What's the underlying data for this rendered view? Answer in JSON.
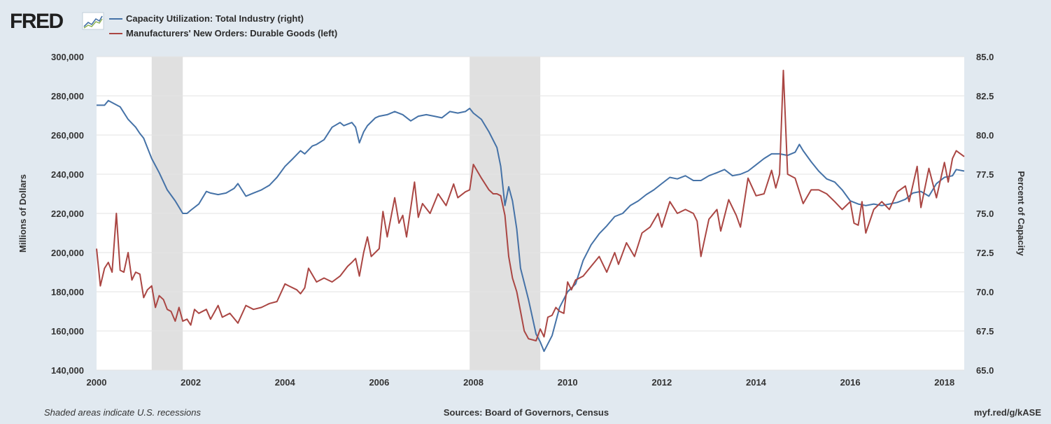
{
  "brand": {
    "logo_text": "FRED",
    "logo_icon": "fred-chart-icon"
  },
  "footer": {
    "recession_note": "Shaded areas indicate U.S. recessions",
    "sources": "Sources: Board of Governors, Census",
    "short_url": "myf.red/g/kASE"
  },
  "colors": {
    "background": "#e1e9f0",
    "plot_bg": "#ffffff",
    "grid": "#e3e3e3",
    "recession": "#e0e0e0",
    "capacity": "#4572a7",
    "orders": "#aa4643"
  },
  "chart_data": {
    "type": "line",
    "legend_position": "top-left",
    "grid": true,
    "recessions": [
      [
        2001.17,
        2001.83
      ],
      [
        2007.92,
        2009.42
      ]
    ],
    "x_axis": {
      "range": [
        2000.0,
        2018.42
      ],
      "ticks": [
        2000,
        2002,
        2004,
        2006,
        2008,
        2010,
        2012,
        2014,
        2016,
        2018
      ],
      "tick_labels": [
        "2000",
        "2002",
        "2004",
        "2006",
        "2008",
        "2010",
        "2012",
        "2014",
        "2016",
        "2018"
      ]
    },
    "y_left": {
      "label": "Millions of Dollars",
      "range": [
        140000,
        300000
      ],
      "ticks": [
        140000,
        160000,
        180000,
        200000,
        220000,
        240000,
        260000,
        280000,
        300000
      ],
      "tick_labels": [
        "140,000",
        "160,000",
        "180,000",
        "200,000",
        "220,000",
        "240,000",
        "260,000",
        "280,000",
        "300,000"
      ]
    },
    "y_right": {
      "label": "Percent of Capacity",
      "range": [
        65.0,
        85.0
      ],
      "ticks": [
        65.0,
        67.5,
        70.0,
        72.5,
        75.0,
        77.5,
        80.0,
        82.5,
        85.0
      ],
      "tick_labels": [
        "65.0",
        "67.5",
        "70.0",
        "72.5",
        "75.0",
        "77.5",
        "80.0",
        "82.5",
        "85.0"
      ]
    },
    "series": [
      {
        "name": "Capacity Utilization: Total Industry (right)",
        "axis": "right",
        "color": "#4572a7",
        "x": [
          2000.0,
          2000.17,
          2000.25,
          2000.5,
          2000.67,
          2000.83,
          2000.92,
          2001.0,
          2001.17,
          2001.33,
          2001.5,
          2001.67,
          2001.83,
          2001.92,
          2002.0,
          2002.17,
          2002.33,
          2002.42,
          2002.58,
          2002.75,
          2002.92,
          2003.0,
          2003.17,
          2003.33,
          2003.5,
          2003.67,
          2003.83,
          2004.0,
          2004.17,
          2004.33,
          2004.42,
          2004.58,
          2004.67,
          2004.83,
          2005.0,
          2005.17,
          2005.25,
          2005.42,
          2005.5,
          2005.58,
          2005.67,
          2005.75,
          2005.92,
          2006.0,
          2006.17,
          2006.33,
          2006.5,
          2006.67,
          2006.83,
          2007.0,
          2007.17,
          2007.33,
          2007.5,
          2007.67,
          2007.83,
          2007.92,
          2008.0,
          2008.17,
          2008.33,
          2008.5,
          2008.58,
          2008.67,
          2008.75,
          2008.83,
          2008.92,
          2009.0,
          2009.17,
          2009.33,
          2009.42,
          2009.5,
          2009.67,
          2009.83,
          2010.0,
          2010.17,
          2010.33,
          2010.5,
          2010.67,
          2010.83,
          2011.0,
          2011.17,
          2011.33,
          2011.5,
          2011.67,
          2011.83,
          2012.0,
          2012.17,
          2012.33,
          2012.5,
          2012.67,
          2012.83,
          2013.0,
          2013.17,
          2013.33,
          2013.5,
          2013.67,
          2013.83,
          2014.0,
          2014.17,
          2014.33,
          2014.5,
          2014.67,
          2014.83,
          2014.92,
          2015.0,
          2015.17,
          2015.33,
          2015.5,
          2015.67,
          2015.83,
          2016.0,
          2016.17,
          2016.33,
          2016.5,
          2016.67,
          2016.83,
          2017.0,
          2017.17,
          2017.33,
          2017.5,
          2017.67,
          2017.83,
          2018.0,
          2018.17,
          2018.25,
          2018.42
        ],
        "values": [
          81.9,
          81.9,
          82.2,
          81.8,
          81.0,
          80.5,
          80.1,
          79.8,
          78.5,
          77.6,
          76.5,
          75.8,
          75.0,
          75.0,
          75.2,
          75.6,
          76.4,
          76.3,
          76.2,
          76.3,
          76.6,
          76.9,
          76.1,
          76.3,
          76.5,
          76.8,
          77.3,
          78.0,
          78.5,
          79.0,
          78.8,
          79.3,
          79.4,
          79.7,
          80.5,
          80.8,
          80.6,
          80.8,
          80.5,
          79.5,
          80.2,
          80.6,
          81.1,
          81.2,
          81.3,
          81.5,
          81.3,
          80.9,
          81.2,
          81.3,
          81.2,
          81.1,
          81.5,
          81.4,
          81.5,
          81.7,
          81.4,
          81.0,
          80.2,
          79.2,
          78.0,
          75.5,
          76.7,
          75.8,
          74.0,
          71.5,
          69.5,
          67.3,
          66.8,
          66.2,
          67.2,
          69.0,
          70.0,
          70.5,
          72.0,
          73.0,
          73.7,
          74.2,
          74.8,
          75.0,
          75.5,
          75.8,
          76.2,
          76.5,
          76.9,
          77.3,
          77.2,
          77.4,
          77.1,
          77.1,
          77.4,
          77.6,
          77.8,
          77.4,
          77.5,
          77.7,
          78.1,
          78.5,
          78.8,
          78.8,
          78.7,
          78.9,
          79.4,
          79.0,
          78.3,
          77.7,
          77.2,
          77.0,
          76.5,
          75.8,
          75.6,
          75.5,
          75.6,
          75.5,
          75.6,
          75.7,
          75.9,
          76.3,
          76.4,
          76.1,
          76.9,
          77.3,
          77.4,
          77.8,
          77.7
        ]
      },
      {
        "name": "Manufacturers' New Orders: Durable Goods (left)",
        "axis": "left",
        "color": "#aa4643",
        "x": [
          2000.0,
          2000.08,
          2000.17,
          2000.25,
          2000.33,
          2000.42,
          2000.5,
          2000.58,
          2000.67,
          2000.75,
          2000.83,
          2000.92,
          2001.0,
          2001.08,
          2001.17,
          2001.25,
          2001.33,
          2001.42,
          2001.5,
          2001.58,
          2001.67,
          2001.75,
          2001.83,
          2001.92,
          2002.0,
          2002.08,
          2002.17,
          2002.33,
          2002.42,
          2002.58,
          2002.67,
          2002.83,
          2003.0,
          2003.17,
          2003.33,
          2003.5,
          2003.67,
          2003.83,
          2004.0,
          2004.08,
          2004.25,
          2004.33,
          2004.42,
          2004.5,
          2004.67,
          2004.83,
          2005.0,
          2005.17,
          2005.33,
          2005.42,
          2005.5,
          2005.58,
          2005.67,
          2005.75,
          2005.83,
          2006.0,
          2006.08,
          2006.17,
          2006.33,
          2006.42,
          2006.5,
          2006.58,
          2006.75,
          2006.83,
          2006.92,
          2007.08,
          2007.25,
          2007.42,
          2007.58,
          2007.67,
          2007.83,
          2007.92,
          2008.0,
          2008.17,
          2008.33,
          2008.42,
          2008.5,
          2008.58,
          2008.67,
          2008.75,
          2008.83,
          2008.92,
          2009.0,
          2009.08,
          2009.17,
          2009.33,
          2009.42,
          2009.5,
          2009.58,
          2009.67,
          2009.75,
          2009.83,
          2009.92,
          2010.0,
          2010.08,
          2010.17,
          2010.33,
          2010.5,
          2010.67,
          2010.83,
          2011.0,
          2011.08,
          2011.25,
          2011.42,
          2011.58,
          2011.75,
          2011.92,
          2012.0,
          2012.17,
          2012.33,
          2012.5,
          2012.67,
          2012.75,
          2012.83,
          2013.0,
          2013.17,
          2013.25,
          2013.42,
          2013.58,
          2013.67,
          2013.83,
          2014.0,
          2014.17,
          2014.33,
          2014.42,
          2014.5,
          2014.58,
          2014.67,
          2014.83,
          2015.0,
          2015.17,
          2015.33,
          2015.5,
          2015.67,
          2015.83,
          2016.0,
          2016.08,
          2016.17,
          2016.25,
          2016.33,
          2016.5,
          2016.67,
          2016.83,
          2017.0,
          2017.17,
          2017.25,
          2017.42,
          2017.5,
          2017.67,
          2017.83,
          2018.0,
          2018.08,
          2018.17,
          2018.25,
          2018.42
        ],
        "values": [
          202000,
          183000,
          192000,
          195000,
          190000,
          220000,
          191000,
          190000,
          200000,
          186000,
          190000,
          189000,
          177000,
          181000,
          183000,
          172000,
          178000,
          176000,
          171000,
          170000,
          165000,
          172000,
          165000,
          166000,
          163000,
          171000,
          169000,
          171000,
          166000,
          173000,
          167000,
          169000,
          164000,
          173000,
          171000,
          172000,
          174000,
          175000,
          184000,
          183000,
          181000,
          179000,
          182000,
          192000,
          185000,
          187000,
          185000,
          188000,
          193000,
          195000,
          197000,
          188000,
          200000,
          208000,
          198000,
          202000,
          221000,
          208000,
          228000,
          215000,
          219000,
          208000,
          236000,
          218000,
          225000,
          220000,
          230000,
          224000,
          235000,
          228000,
          231000,
          232000,
          245000,
          238000,
          232000,
          230000,
          230000,
          229000,
          219000,
          198000,
          187000,
          180000,
          170000,
          160000,
          156000,
          155000,
          161000,
          157000,
          167000,
          168000,
          172000,
          170000,
          169000,
          185000,
          181000,
          186000,
          188000,
          193000,
          198000,
          190000,
          200000,
          194000,
          205000,
          198000,
          210000,
          213000,
          220000,
          213000,
          226000,
          220000,
          222000,
          220000,
          216000,
          198000,
          217000,
          222000,
          211000,
          227000,
          219000,
          213000,
          238000,
          229000,
          230000,
          242000,
          233000,
          240000,
          293000,
          240000,
          238000,
          225000,
          232000,
          232000,
          230000,
          226000,
          222000,
          226000,
          215000,
          214000,
          226000,
          210000,
          222000,
          226000,
          222000,
          231000,
          234000,
          226000,
          244000,
          223000,
          243000,
          228000,
          246000,
          236000,
          248000,
          252000,
          249000
        ]
      }
    ]
  }
}
